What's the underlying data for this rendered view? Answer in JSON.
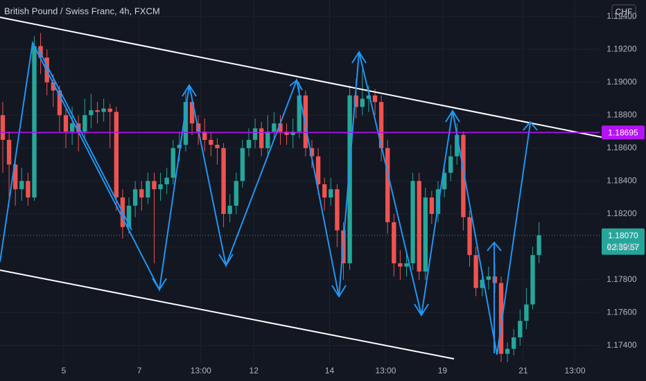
{
  "chart_data": {
    "type": "candlestick",
    "title": "British Pound / Swiss Franc, 4h, FXCM",
    "currency": "CHF",
    "open": [
      1.188,
      1.1865,
      1.185,
      1.1835,
      1.184,
      1.183,
      1.1922,
      1.1915,
      1.19,
      1.1895,
      1.188,
      1.187,
      1.1875,
      1.187,
      1.188,
      1.1883,
      1.1882,
      1.1884,
      1.1882,
      1.183,
      1.1812,
      1.1825,
      1.1835,
      1.183,
      1.184,
      1.1835,
      1.1838,
      1.1842,
      1.186,
      1.1862,
      1.1888,
      1.1875,
      1.187,
      1.1865,
      1.1862,
      1.186,
      1.182,
      1.1825,
      1.184,
      1.186,
      1.1865,
      1.1872,
      1.186,
      1.187,
      1.1875,
      1.187,
      1.1868,
      1.187,
      1.1892,
      1.186,
      1.1855,
      1.1838,
      1.183,
      1.1835,
      1.181,
      1.179,
      1.1892,
      1.1885,
      1.189,
      1.1892,
      1.1888,
      1.186,
      1.1815,
      1.179,
      1.1788,
      1.179,
      1.184,
      1.1785,
      1.183,
      1.182,
      1.1835,
      1.1845,
      1.1855,
      1.1868,
      1.1818,
      1.1795,
      1.1775,
      1.178,
      1.1782,
      1.1778,
      1.1735,
      1.1738,
      1.1745,
      1.1755,
      1.1765,
      1.1795
    ],
    "high": [
      1.1888,
      1.187,
      1.1855,
      1.1848,
      1.1845,
      1.1928,
      1.193,
      1.192,
      1.1905,
      1.1898,
      1.1885,
      1.1885,
      1.188,
      1.189,
      1.1893,
      1.1888,
      1.189,
      1.1887,
      1.1885,
      1.1835,
      1.183,
      1.184,
      1.184,
      1.1845,
      1.1845,
      1.1845,
      1.1848,
      1.1865,
      1.187,
      1.1895,
      1.1892,
      1.188,
      1.1878,
      1.187,
      1.1866,
      1.1863,
      1.1832,
      1.1845,
      1.1865,
      1.1872,
      1.1878,
      1.1876,
      1.188,
      1.1882,
      1.188,
      1.1875,
      1.1878,
      1.19,
      1.1895,
      1.1865,
      1.186,
      1.1842,
      1.1842,
      1.1838,
      1.1815,
      1.1898,
      1.1902,
      1.1908,
      1.1898,
      1.1896,
      1.1892,
      1.1865,
      1.182,
      1.1798,
      1.1796,
      1.1845,
      1.1845,
      1.1836,
      1.1834,
      1.184,
      1.185,
      1.1862,
      1.1875,
      1.187,
      1.1822,
      1.18,
      1.1786,
      1.1788,
      1.179,
      1.1782,
      1.1742,
      1.175,
      1.1762,
      1.1775,
      1.18,
      1.1815
    ],
    "low": [
      1.1845,
      1.183,
      1.1825,
      1.1828,
      1.1825,
      1.1828,
      1.1905,
      1.1892,
      1.1885,
      1.187,
      1.186,
      1.1862,
      1.1858,
      1.1865,
      1.1872,
      1.1875,
      1.1876,
      1.186,
      1.1822,
      1.1805,
      1.1808,
      1.1818,
      1.1822,
      1.1826,
      1.179,
      1.1828,
      1.1832,
      1.1838,
      1.1852,
      1.1858,
      1.1868,
      1.1862,
      1.1858,
      1.1855,
      1.185,
      1.1812,
      1.1815,
      1.182,
      1.1836,
      1.1855,
      1.186,
      1.1855,
      1.1856,
      1.1865,
      1.1862,
      1.1862,
      1.186,
      1.1866,
      1.1855,
      1.1848,
      1.1832,
      1.1822,
      1.1825,
      1.18,
      1.178,
      1.1786,
      1.1878,
      1.188,
      1.1882,
      1.188,
      1.1852,
      1.1808,
      1.1782,
      1.178,
      1.1782,
      1.1786,
      1.178,
      1.178,
      1.1814,
      1.1815,
      1.183,
      1.184,
      1.185,
      1.181,
      1.1788,
      1.177,
      1.177,
      1.1774,
      1.1772,
      1.173,
      1.173,
      1.1734,
      1.174,
      1.175,
      1.1762,
      1.179
    ],
    "close": [
      1.1865,
      1.185,
      1.1835,
      1.184,
      1.183,
      1.1922,
      1.1915,
      1.19,
      1.1895,
      1.188,
      1.187,
      1.1875,
      1.187,
      1.188,
      1.1883,
      1.1882,
      1.1884,
      1.1882,
      1.183,
      1.1812,
      1.1825,
      1.1835,
      1.183,
      1.184,
      1.1835,
      1.1838,
      1.1842,
      1.186,
      1.1862,
      1.1888,
      1.1875,
      1.187,
      1.1865,
      1.1862,
      1.186,
      1.182,
      1.1825,
      1.184,
      1.186,
      1.1865,
      1.1872,
      1.186,
      1.187,
      1.1875,
      1.187,
      1.1868,
      1.187,
      1.1892,
      1.186,
      1.1855,
      1.1838,
      1.183,
      1.1835,
      1.181,
      1.179,
      1.1892,
      1.1885,
      1.189,
      1.1892,
      1.1888,
      1.186,
      1.1815,
      1.179,
      1.1788,
      1.179,
      1.184,
      1.1785,
      1.183,
      1.182,
      1.1835,
      1.1845,
      1.1855,
      1.1868,
      1.1818,
      1.1795,
      1.1775,
      1.178,
      1.1782,
      1.1778,
      1.1735,
      1.1738,
      1.1745,
      1.1755,
      1.1765,
      1.1795,
      1.1807
    ],
    "up_color": "#26a69a",
    "down_color": "#ef5350",
    "xlim": [
      -0.44,
      94.6
    ],
    "xticks": [
      {
        "value": 9.67,
        "label": "5"
      },
      {
        "value": 21.65,
        "label": "7"
      },
      {
        "value": 31.4,
        "label": "13:00"
      },
      {
        "value": 39.8,
        "label": "12"
      },
      {
        "value": 51.8,
        "label": "14"
      },
      {
        "value": 60.7,
        "label": "13:00"
      },
      {
        "value": 69.7,
        "label": "19"
      },
      {
        "value": 82.5,
        "label": "21"
      },
      {
        "value": 90.7,
        "label": "13:00"
      }
    ],
    "ylim": [
      1.1729,
      1.195
    ],
    "yticks": [
      {
        "value": 1.174,
        "label": "1.17400"
      },
      {
        "value": 1.176,
        "label": "1.17600"
      },
      {
        "value": 1.178,
        "label": "1.17800"
      },
      {
        "value": 1.18,
        "label": "1.18000"
      },
      {
        "value": 1.182,
        "label": "1.18200"
      },
      {
        "value": 1.184,
        "label": "1.18400"
      },
      {
        "value": 1.186,
        "label": "1.18600"
      },
      {
        "value": 1.188,
        "label": "1.18800"
      },
      {
        "value": 1.19,
        "label": "1.19000"
      },
      {
        "value": 1.192,
        "label": "1.19200"
      },
      {
        "value": 1.194,
        "label": "1.19400"
      }
    ],
    "grid": true,
    "level": {
      "value": 1.18695,
      "color": "#b512f5"
    },
    "last_price": {
      "value": 1.1807,
      "label": "1.18070",
      "countdown": "02:39:57"
    }
  }
}
